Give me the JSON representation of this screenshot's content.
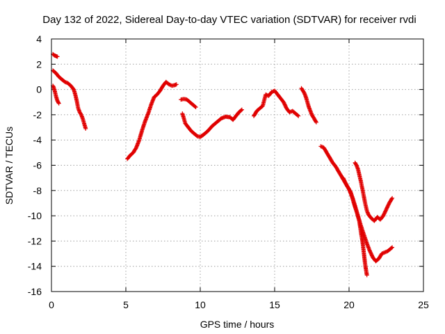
{
  "chart_data": {
    "type": "scatter",
    "title": "Day 132 of 2022, Sidereal Day-to-day VTEC variation (SDTVAR) for receiver rvdi",
    "xlabel": "GPS time / hours",
    "ylabel": "SDTVAR / TECUs",
    "xlim": [
      0,
      25
    ],
    "ylim": [
      -16,
      4
    ],
    "xticks": [
      0,
      5,
      10,
      15,
      20,
      25
    ],
    "yticks": [
      -16,
      -14,
      -12,
      -10,
      -8,
      -6,
      -4,
      -2,
      0,
      2,
      4
    ],
    "xtick_labels": [
      "0",
      "5",
      "10",
      "15",
      "20",
      "25"
    ],
    "ytick_labels": [
      "-16",
      "-14",
      "-12",
      "-10",
      "-8",
      "-6",
      "-4",
      "-2",
      "0",
      "2",
      "4"
    ],
    "grid": true,
    "legend": "none",
    "marker": "+",
    "color": "#e00000",
    "segments": [
      {
        "x": [
          0.1,
          0.2,
          0.3,
          0.4
        ],
        "y": [
          2.8,
          2.7,
          2.65,
          2.6
        ]
      },
      {
        "x": [
          0.1,
          0.2,
          0.3,
          0.4,
          0.5
        ],
        "y": [
          0.3,
          0.0,
          -0.5,
          -0.9,
          -1.1
        ]
      },
      {
        "x": [
          0.1,
          0.3,
          0.5,
          0.7,
          0.9,
          1.1,
          1.3,
          1.5,
          1.6,
          1.7,
          1.8,
          1.9,
          2.0,
          2.1,
          2.2,
          2.3
        ],
        "y": [
          1.5,
          1.3,
          1.0,
          0.8,
          0.6,
          0.5,
          0.3,
          0.0,
          -0.4,
          -0.9,
          -1.5,
          -1.8,
          -2.0,
          -2.3,
          -2.7,
          -3.1
        ]
      },
      {
        "x": [
          5.1,
          5.3,
          5.5,
          5.7,
          5.9,
          6.1,
          6.3,
          6.5,
          6.7,
          6.9,
          7.1,
          7.3,
          7.5,
          7.7,
          7.9,
          8.1,
          8.3,
          8.4
        ],
        "y": [
          -5.5,
          -5.2,
          -5.0,
          -4.6,
          -4.0,
          -3.2,
          -2.5,
          -1.9,
          -1.2,
          -0.6,
          -0.4,
          -0.1,
          0.3,
          0.6,
          0.4,
          0.3,
          0.35,
          0.4
        ]
      },
      {
        "x": [
          8.7,
          8.9,
          9.1,
          9.3,
          9.5,
          9.7
        ],
        "y": [
          -0.8,
          -0.75,
          -0.8,
          -1.0,
          -1.2,
          -1.4
        ]
      },
      {
        "x": [
          8.8,
          8.9,
          9.0,
          9.2,
          9.4,
          9.6,
          9.8,
          10.0,
          10.2,
          10.5,
          10.8,
          11.1,
          11.4,
          11.7,
          12.0,
          12.2,
          12.4,
          12.6,
          12.8
        ],
        "y": [
          -1.9,
          -2.3,
          -2.7,
          -3.0,
          -3.3,
          -3.5,
          -3.7,
          -3.75,
          -3.6,
          -3.3,
          -2.9,
          -2.6,
          -2.3,
          -2.15,
          -2.2,
          -2.4,
          -2.1,
          -1.8,
          -1.6
        ]
      },
      {
        "x": [
          13.6,
          13.8,
          14.0,
          14.2,
          14.4,
          14.6,
          14.8,
          15.0,
          15.2,
          15.4,
          15.6,
          15.8,
          16.0,
          16.2,
          16.4,
          16.6
        ],
        "y": [
          -2.1,
          -1.7,
          -1.5,
          -1.3,
          -0.4,
          -0.5,
          -0.2,
          -0.1,
          -0.4,
          -0.7,
          -1.0,
          -1.5,
          -1.8,
          -1.7,
          -1.9,
          -2.1
        ]
      },
      {
        "x": [
          16.8,
          16.9,
          17.0,
          17.1,
          17.2,
          17.3,
          17.4,
          17.5,
          17.6,
          17.7,
          17.8
        ],
        "y": [
          0.1,
          -0.1,
          -0.3,
          -0.6,
          -1.0,
          -1.4,
          -1.7,
          -2.0,
          -2.2,
          -2.4,
          -2.6
        ]
      },
      {
        "x": [
          18.1,
          18.3,
          18.5,
          18.7,
          18.9,
          19.1,
          19.3,
          19.5,
          19.7,
          19.9,
          20.1,
          20.3,
          20.5,
          20.7,
          20.8,
          20.9,
          21.0,
          21.1,
          21.2
        ],
        "y": [
          -4.5,
          -4.6,
          -5.0,
          -5.4,
          -5.8,
          -6.1,
          -6.5,
          -6.9,
          -7.3,
          -7.7,
          -8.1,
          -8.8,
          -9.6,
          -10.5,
          -11.3,
          -12.0,
          -13.0,
          -14.0,
          -14.7
        ]
      },
      {
        "x": [
          19.6,
          19.8,
          20.0,
          20.2,
          20.4,
          20.6,
          20.8,
          21.0,
          21.2,
          21.4,
          21.6,
          21.8,
          22.0,
          22.2,
          22.4,
          22.6,
          22.8,
          22.9
        ],
        "y": [
          -7.0,
          -7.5,
          -7.9,
          -8.5,
          -9.3,
          -10.0,
          -10.8,
          -11.5,
          -12.2,
          -12.8,
          -13.3,
          -13.6,
          -13.4,
          -13.0,
          -12.9,
          -12.8,
          -12.6,
          -12.5
        ]
      },
      {
        "x": [
          20.4,
          20.5,
          20.6,
          20.7,
          20.8,
          20.9,
          21.0,
          21.1,
          21.2,
          21.3,
          21.5,
          21.7,
          21.9,
          22.1,
          22.3,
          22.5,
          22.7,
          22.9
        ],
        "y": [
          -5.8,
          -6.0,
          -6.3,
          -6.8,
          -7.3,
          -7.9,
          -8.5,
          -9.1,
          -9.6,
          -9.9,
          -10.2,
          -10.4,
          -10.1,
          -10.3,
          -10.0,
          -9.5,
          -9.0,
          -8.6
        ]
      }
    ]
  }
}
